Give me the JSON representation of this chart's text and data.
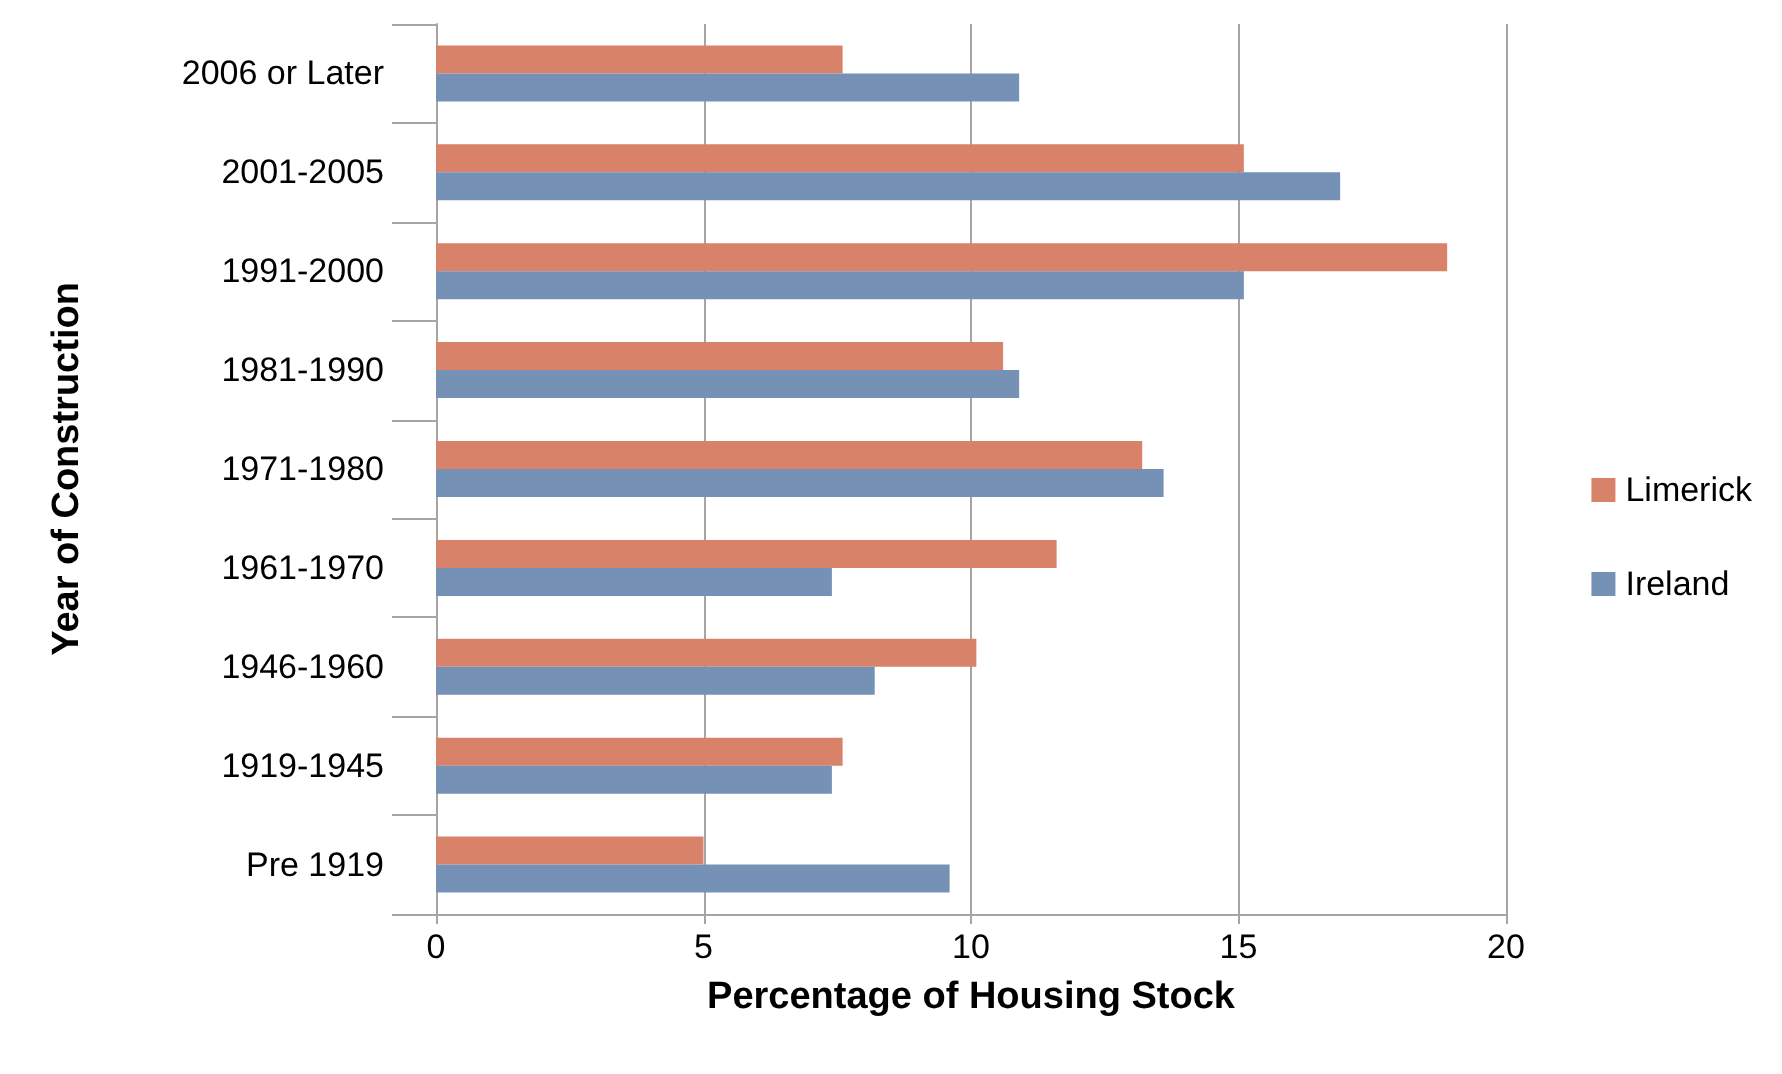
{
  "chart_data": {
    "type": "bar",
    "orientation": "horizontal",
    "xlabel": "Percentage of Housing Stock",
    "ylabel": "Year of Construction",
    "categories": [
      "2006 or Later",
      "2001-2005",
      "1991-2000",
      "1981-1990",
      "1971-1980",
      "1961-1970",
      "1946-1960",
      "1919-1945",
      "Pre 1919"
    ],
    "series": [
      {
        "name": "Limerick",
        "color": "#d9826a",
        "values": [
          7.6,
          15.1,
          18.9,
          10.6,
          13.2,
          11.6,
          10.1,
          7.6,
          5.0
        ]
      },
      {
        "name": "Ireland",
        "color": "#7691b6",
        "values": [
          10.9,
          16.9,
          15.1,
          10.9,
          13.6,
          7.4,
          8.2,
          7.4,
          9.6
        ]
      }
    ],
    "xlim": [
      0,
      20
    ],
    "xticks": [
      0,
      5,
      10,
      15,
      20
    ],
    "grid": "x",
    "legend": "right"
  }
}
